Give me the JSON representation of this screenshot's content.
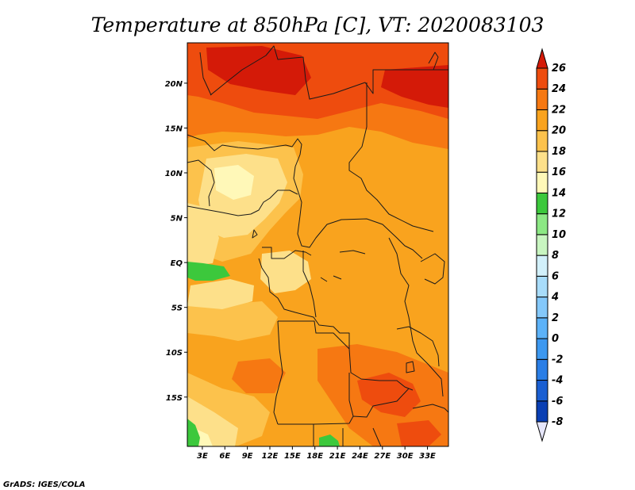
{
  "title": "Temperature at 850hPa [C], VT: 2020083103",
  "credit": "GrADS: IGES/COLA",
  "map": {
    "lon_range": [
      1,
      35.8
    ],
    "lat_range": [
      -20.5,
      24.5
    ],
    "lon_ticks": [
      {
        "value": 3,
        "label": "3E"
      },
      {
        "value": 6,
        "label": "6E"
      },
      {
        "value": 9,
        "label": "9E"
      },
      {
        "value": 12,
        "label": "12E"
      },
      {
        "value": 15,
        "label": "15E"
      },
      {
        "value": 18,
        "label": "18E"
      },
      {
        "value": 21,
        "label": "21E"
      },
      {
        "value": 24,
        "label": "24E"
      },
      {
        "value": 27,
        "label": "27E"
      },
      {
        "value": 30,
        "label": "30E"
      },
      {
        "value": 33,
        "label": "33E"
      }
    ],
    "lat_ticks": [
      {
        "value": 20,
        "label": "20N"
      },
      {
        "value": 15,
        "label": "15N"
      },
      {
        "value": 10,
        "label": "10N"
      },
      {
        "value": 5,
        "label": "5N"
      },
      {
        "value": 0,
        "label": "EQ"
      },
      {
        "value": -5,
        "label": "5S"
      },
      {
        "value": -10,
        "label": "10S"
      },
      {
        "value": -15,
        "label": "15S"
      }
    ]
  },
  "colorbar": {
    "levels": [
      {
        "label": "-8",
        "color": "#0a1a82"
      },
      {
        "label": "-6",
        "color": "#0a3fb4"
      },
      {
        "label": "-4",
        "color": "#1a5fd2"
      },
      {
        "label": "-2",
        "color": "#2a7ee6"
      },
      {
        "label": "0",
        "color": "#3c98f0"
      },
      {
        "label": "2",
        "color": "#5cb2f8"
      },
      {
        "label": "4",
        "color": "#84c8fa"
      },
      {
        "label": "6",
        "color": "#a8dcfa"
      },
      {
        "label": "8",
        "color": "#d2f0fa"
      },
      {
        "label": "10",
        "color": "#c8f5c0"
      },
      {
        "label": "12",
        "color": "#8ce884"
      },
      {
        "label": "14",
        "color": "#3cc83c"
      },
      {
        "label": "16",
        "color": "#fff8b8"
      },
      {
        "label": "18",
        "color": "#fde08a"
      },
      {
        "label": "20",
        "color": "#fcc24c"
      },
      {
        "label": "22",
        "color": "#f9a31e"
      },
      {
        "label": "24",
        "color": "#f67812"
      },
      {
        "label": "26",
        "color": "#ee4c0e"
      }
    ],
    "under_color": "#e6e6fa",
    "over_color": "#d41a08"
  },
  "field_colors": {
    "t12": "#3cc83c",
    "t14": "#fff8b8",
    "t16": "#fde08a",
    "t18": "#fcc24c",
    "t20": "#f9a31e",
    "t22": "#f67812",
    "t24": "#ee4c0e",
    "t26": "#d41a08"
  }
}
